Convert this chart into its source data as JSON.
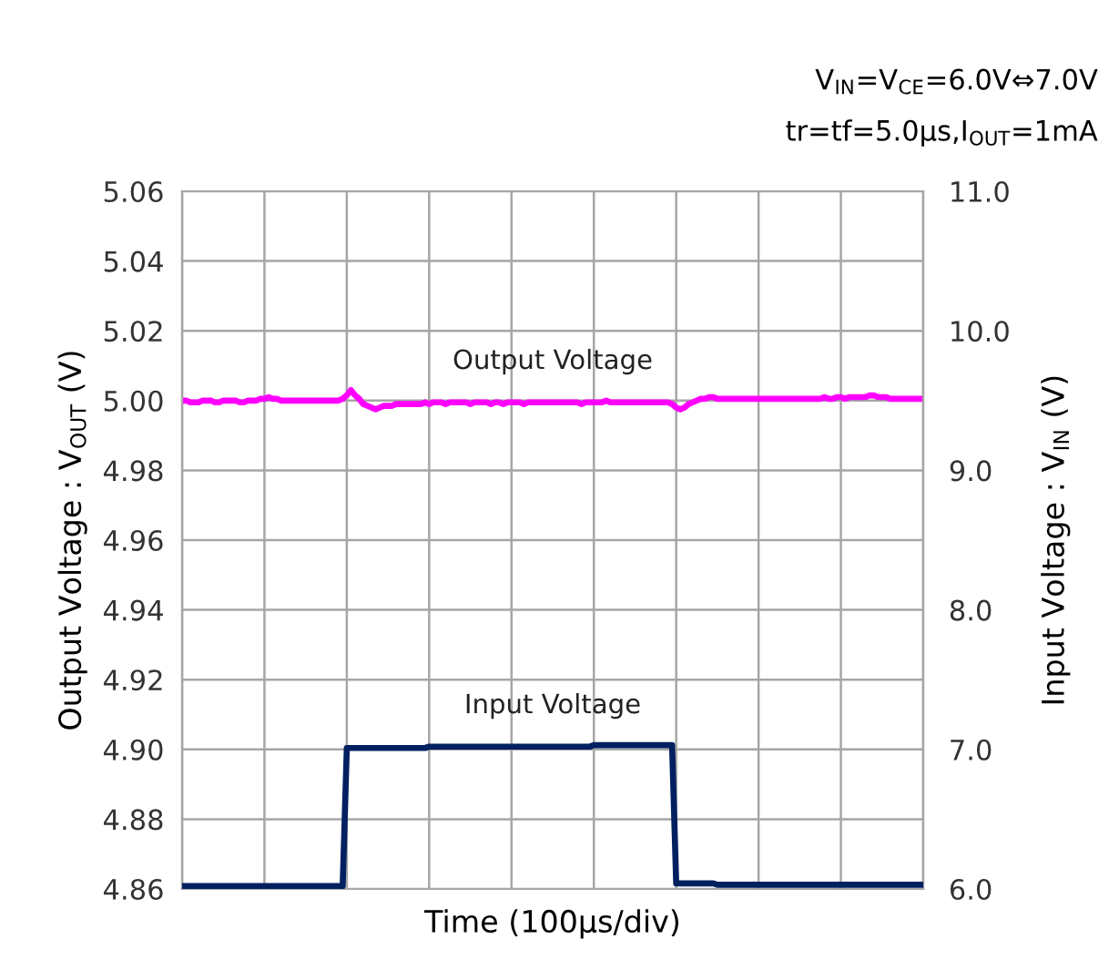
{
  "chart_data": {
    "type": "line",
    "xlabel": "Time (100µs/div)",
    "ylabel": "Output Voltage : V$_{OUT}$ (V)",
    "y2label": "Input Voltage : V$_{IN}$ (V)",
    "annotations": [
      "V$_{IN}$=V$_{CE}$=6.0V⇔7.0V",
      "tr=tf=5.0µs,I$_{OUT}$=1mA"
    ],
    "categories": [
      null,
      null,
      null,
      null,
      null,
      null,
      null,
      null,
      null,
      null,
      null,
      null,
      null,
      null,
      null,
      null,
      null,
      null,
      null,
      null,
      null,
      null,
      null,
      null,
      null,
      null,
      null,
      null,
      null,
      null,
      null,
      null,
      null,
      null,
      null,
      null,
      null,
      null,
      null,
      null,
      null,
      null,
      null,
      null,
      null,
      null,
      null,
      null,
      null,
      null,
      null,
      null,
      null,
      null,
      null,
      null,
      null,
      null,
      null,
      null,
      null,
      null,
      null,
      null,
      null,
      null,
      null,
      null,
      null,
      null,
      null,
      null,
      null,
      null,
      null,
      null,
      null,
      null,
      null,
      null,
      null,
      null,
      null,
      null,
      null,
      null,
      null,
      null,
      null,
      null,
      null,
      null,
      null,
      null,
      null,
      null,
      null,
      null,
      null,
      null,
      null,
      null,
      null,
      null,
      null,
      null,
      null,
      null,
      null,
      null,
      null,
      null,
      null,
      null,
      null,
      null,
      null,
      null,
      null,
      null,
      null,
      null,
      null,
      null,
      null,
      null,
      null,
      null,
      null,
      null,
      null,
      null,
      null,
      null,
      null,
      null,
      null,
      null,
      null,
      null,
      null,
      null,
      null,
      null,
      null,
      null,
      null,
      null,
      null,
      null,
      null,
      null,
      null,
      null,
      null,
      null,
      null,
      null,
      null,
      null,
      null,
      null,
      null,
      null,
      null,
      null,
      null,
      null,
      null,
      null,
      null,
      null,
      null,
      null,
      null,
      null,
      null,
      null,
      null,
      null,
      null
    ],
    "ylim": [
      4.86,
      5.06
    ],
    "yticks": [
      4.86,
      4.88,
      {
        "value": 4.9,
        "label": "4.90"
      },
      4.92,
      4.94,
      4.96,
      4.98,
      {
        "value": 5.0,
        "label": "5.00"
      },
      5.02,
      5.04,
      5.06
    ],
    "y2lim": [
      6.0,
      11.0
    ],
    "y2ticks": [
      {
        "value": 6,
        "label": "6.0"
      },
      {
        "value": 7,
        "label": "7.0"
      },
      {
        "value": 8,
        "label": "8.0"
      },
      {
        "value": 9,
        "label": "9.0"
      },
      {
        "value": 10,
        "label": "10.0"
      },
      {
        "value": 11,
        "label": "11.0"
      }
    ],
    "tick_labels": "y",
    "grid": true,
    "series": [
      {
        "name": "Output Voltage",
        "color": "#ff00ff",
        "values": [
          5.0,
          5.0,
          4.9995,
          4.9995,
          4.9995,
          5.0,
          5.0,
          5.0,
          4.9995,
          4.9995,
          5.0,
          5.0,
          5.0,
          5.0,
          4.9995,
          4.9995,
          5.0,
          5.0,
          5.0,
          5.0005,
          5.0005,
          5.001,
          5.0005,
          5.0005,
          5.0,
          5.0,
          5.0,
          5.0,
          5.0,
          5.0,
          5.0,
          5.0,
          5.0,
          5.0,
          5.0,
          5.0,
          5.0,
          5.0,
          5.0,
          5.0005,
          5.0015,
          5.003,
          5.0015,
          5.0005,
          4.999,
          4.9985,
          4.998,
          4.9975,
          4.998,
          4.9985,
          4.9985,
          4.9985,
          4.999,
          4.999,
          4.999,
          4.999,
          4.999,
          4.999,
          4.999,
          4.9995,
          4.999,
          4.9995,
          4.9995,
          4.9995,
          4.999,
          4.9995,
          4.9995,
          4.9995,
          4.9995,
          4.9995,
          4.999,
          4.9995,
          4.9995,
          4.9995,
          4.9995,
          4.999,
          4.9995,
          4.9995,
          4.999,
          4.9995,
          4.9995,
          4.9995,
          4.9995,
          4.999,
          4.9995,
          4.9995,
          4.9995,
          4.9995,
          4.9995,
          4.9995,
          4.9995,
          4.9995,
          4.9995,
          4.9995,
          4.9995,
          4.9995,
          4.9995,
          4.999,
          4.9995,
          4.9995,
          4.9995,
          4.9995,
          4.9995,
          5.0,
          4.9995,
          4.9995,
          4.9995,
          4.9995,
          4.9995,
          4.9995,
          4.9995,
          4.9995,
          4.9995,
          4.9995,
          4.9995,
          4.9995,
          4.9995,
          4.9995,
          4.9995,
          4.999,
          4.998,
          4.9975,
          4.998,
          4.999,
          4.9995,
          5.0,
          5.0005,
          5.0005,
          5.001,
          5.001,
          5.0005,
          5.0005,
          5.0005,
          5.0005,
          5.0005,
          5.0005,
          5.0005,
          5.0005,
          5.0005,
          5.0005,
          5.0005,
          5.0005,
          5.0005,
          5.0005,
          5.0005,
          5.0005,
          5.0005,
          5.0005,
          5.0005,
          5.0005,
          5.0005,
          5.0005,
          5.0005,
          5.0005,
          5.0005,
          5.0005,
          5.001,
          5.0005,
          5.0005,
          5.001,
          5.001,
          5.0005,
          5.001,
          5.001,
          5.001,
          5.001,
          5.001,
          5.0015,
          5.0015,
          5.001,
          5.001,
          5.001,
          5.0005,
          5.0005,
          5.0005,
          5.0005,
          5.0005,
          5.0005,
          5.0005,
          5.0005,
          5.0005
        ]
      },
      {
        "name": "Input Voltage",
        "color": "#002060",
        "axis": "y2",
        "values": [
          6.02,
          6.02,
          6.02,
          6.02,
          6.02,
          6.02,
          6.02,
          6.02,
          6.02,
          6.02,
          6.02,
          6.02,
          6.02,
          6.02,
          6.02,
          6.02,
          6.02,
          6.02,
          6.02,
          6.02,
          6.02,
          6.02,
          6.02,
          6.02,
          6.02,
          6.02,
          6.02,
          6.02,
          6.02,
          6.02,
          6.02,
          6.02,
          6.02,
          6.02,
          6.02,
          6.02,
          6.02,
          6.02,
          6.02,
          6.02,
          7.01,
          7.01,
          7.01,
          7.01,
          7.01,
          7.01,
          7.01,
          7.01,
          7.01,
          7.01,
          7.01,
          7.01,
          7.01,
          7.01,
          7.01,
          7.01,
          7.01,
          7.01,
          7.01,
          7.01,
          7.02,
          7.02,
          7.02,
          7.02,
          7.02,
          7.02,
          7.02,
          7.02,
          7.02,
          7.02,
          7.02,
          7.02,
          7.02,
          7.02,
          7.02,
          7.02,
          7.02,
          7.02,
          7.02,
          7.02,
          7.02,
          7.02,
          7.02,
          7.02,
          7.02,
          7.02,
          7.02,
          7.02,
          7.02,
          7.02,
          7.02,
          7.02,
          7.02,
          7.02,
          7.02,
          7.02,
          7.02,
          7.02,
          7.02,
          7.02,
          7.03,
          7.03,
          7.03,
          7.03,
          7.03,
          7.03,
          7.03,
          7.03,
          7.03,
          7.03,
          7.03,
          7.03,
          7.03,
          7.03,
          7.03,
          7.03,
          7.03,
          7.03,
          7.03,
          7.03,
          6.04,
          6.04,
          6.04,
          6.04,
          6.04,
          6.04,
          6.04,
          6.04,
          6.04,
          6.04,
          6.03,
          6.03,
          6.03,
          6.03,
          6.03,
          6.03,
          6.03,
          6.03,
          6.03,
          6.03,
          6.03,
          6.03,
          6.03,
          6.03,
          6.03,
          6.03,
          6.03,
          6.03,
          6.03,
          6.03,
          6.03,
          6.03,
          6.03,
          6.03,
          6.03,
          6.03,
          6.03,
          6.03,
          6.03,
          6.03,
          6.03,
          6.03,
          6.03,
          6.03,
          6.03,
          6.03,
          6.03,
          6.03,
          6.03,
          6.03,
          6.03,
          6.03,
          6.03,
          6.03,
          6.03,
          6.03,
          6.03,
          6.03,
          6.03,
          6.03,
          6.03
        ]
      }
    ]
  }
}
